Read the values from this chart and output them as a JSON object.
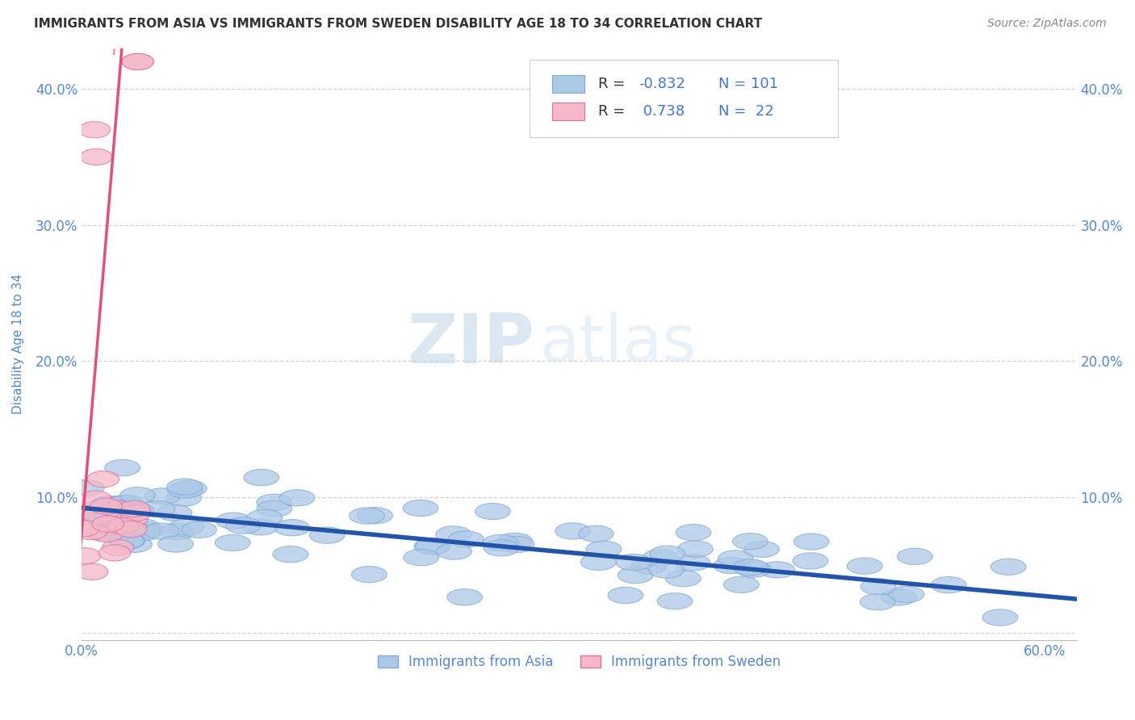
{
  "title": "IMMIGRANTS FROM ASIA VS IMMIGRANTS FROM SWEDEN DISABILITY AGE 18 TO 34 CORRELATION CHART",
  "source_text": "Source: ZipAtlas.com",
  "ylabel": "Disability Age 18 to 34",
  "watermark_zip": "ZIP",
  "watermark_atlas": "atlas",
  "xlim": [
    0.0,
    0.62
  ],
  "ylim": [
    -0.005,
    0.43
  ],
  "xticks": [
    0.0,
    0.1,
    0.2,
    0.3,
    0.4,
    0.5,
    0.6
  ],
  "xticklabels": [
    "0.0%",
    "",
    "",
    "",
    "",
    "",
    "60.0%"
  ],
  "yticks": [
    0.0,
    0.1,
    0.2,
    0.3,
    0.4
  ],
  "yticklabels": [
    "",
    "10.0%",
    "20.0%",
    "30.0%",
    "40.0%"
  ],
  "grid_color": "#cccccc",
  "background_color": "#ffffff",
  "series_asia": {
    "color": "#adc9e8",
    "edge_color": "#80aad4",
    "line_color": "#2255aa",
    "R": -0.832,
    "N": 101,
    "label": "Immigrants from Asia",
    "trend_x0": 0.0,
    "trend_y0": 0.092,
    "trend_x1": 0.62,
    "trend_y1": 0.025
  },
  "series_sweden": {
    "color": "#f4b8c8",
    "edge_color": "#e070a0",
    "line_color": "#e0507a",
    "R": 0.738,
    "N": 22,
    "label": "Immigrants from Sweden",
    "trend_x0": 0.0,
    "trend_y0": 0.075,
    "trend_x1": 0.025,
    "trend_y1": 0.43
  },
  "legend_color": "#4477cc",
  "title_color": "#333333",
  "title_fontsize": 11,
  "tick_label_color": "#5588cc"
}
